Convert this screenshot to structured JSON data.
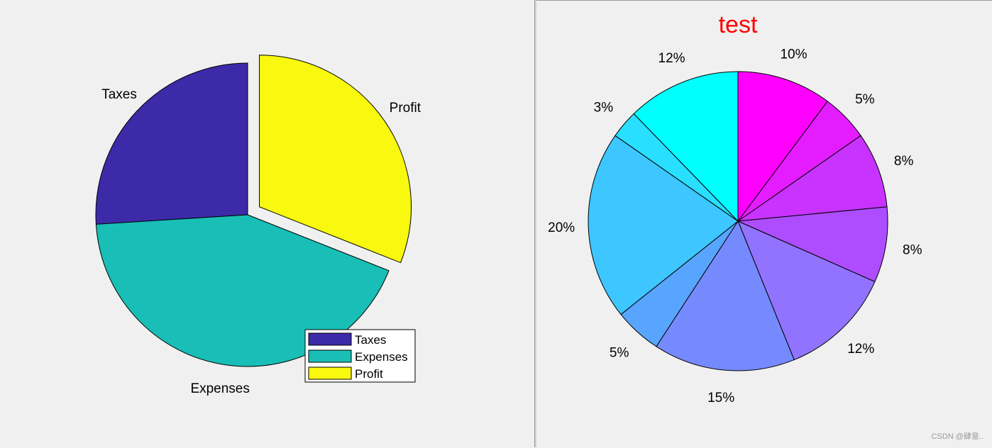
{
  "chart_data": [
    {
      "type": "pie",
      "title": "",
      "categories": [
        "Taxes",
        "Expenses",
        "Profit"
      ],
      "values": [
        26,
        43,
        31
      ],
      "colors": [
        "#3d2aa8",
        "#19bfb6",
        "#f8f90f"
      ],
      "exploded": [
        false,
        false,
        true
      ],
      "slice_labels": [
        "Taxes",
        "Expenses",
        "Profit"
      ],
      "legend": {
        "entries": [
          "Taxes",
          "Expenses",
          "Profit"
        ],
        "placement": "bottom-right"
      }
    },
    {
      "type": "pie",
      "title": "test",
      "title_color": "#ff0000",
      "values": [
        10,
        5,
        8,
        8,
        12,
        15,
        5,
        20,
        3,
        12
      ],
      "percent_labels": [
        "10%",
        "5%",
        "8%",
        "8%",
        "12%",
        "15%",
        "5%",
        "20%",
        "3%",
        "12%"
      ],
      "colors": [
        "#ff00ff",
        "#e41cff",
        "#c833ff",
        "#ad4dff",
        "#9173ff",
        "#768aff",
        "#58a5ff",
        "#3dc6ff",
        "#29dfff",
        "#00ffff"
      ]
    }
  ],
  "watermark": "CSDN @肆意.."
}
